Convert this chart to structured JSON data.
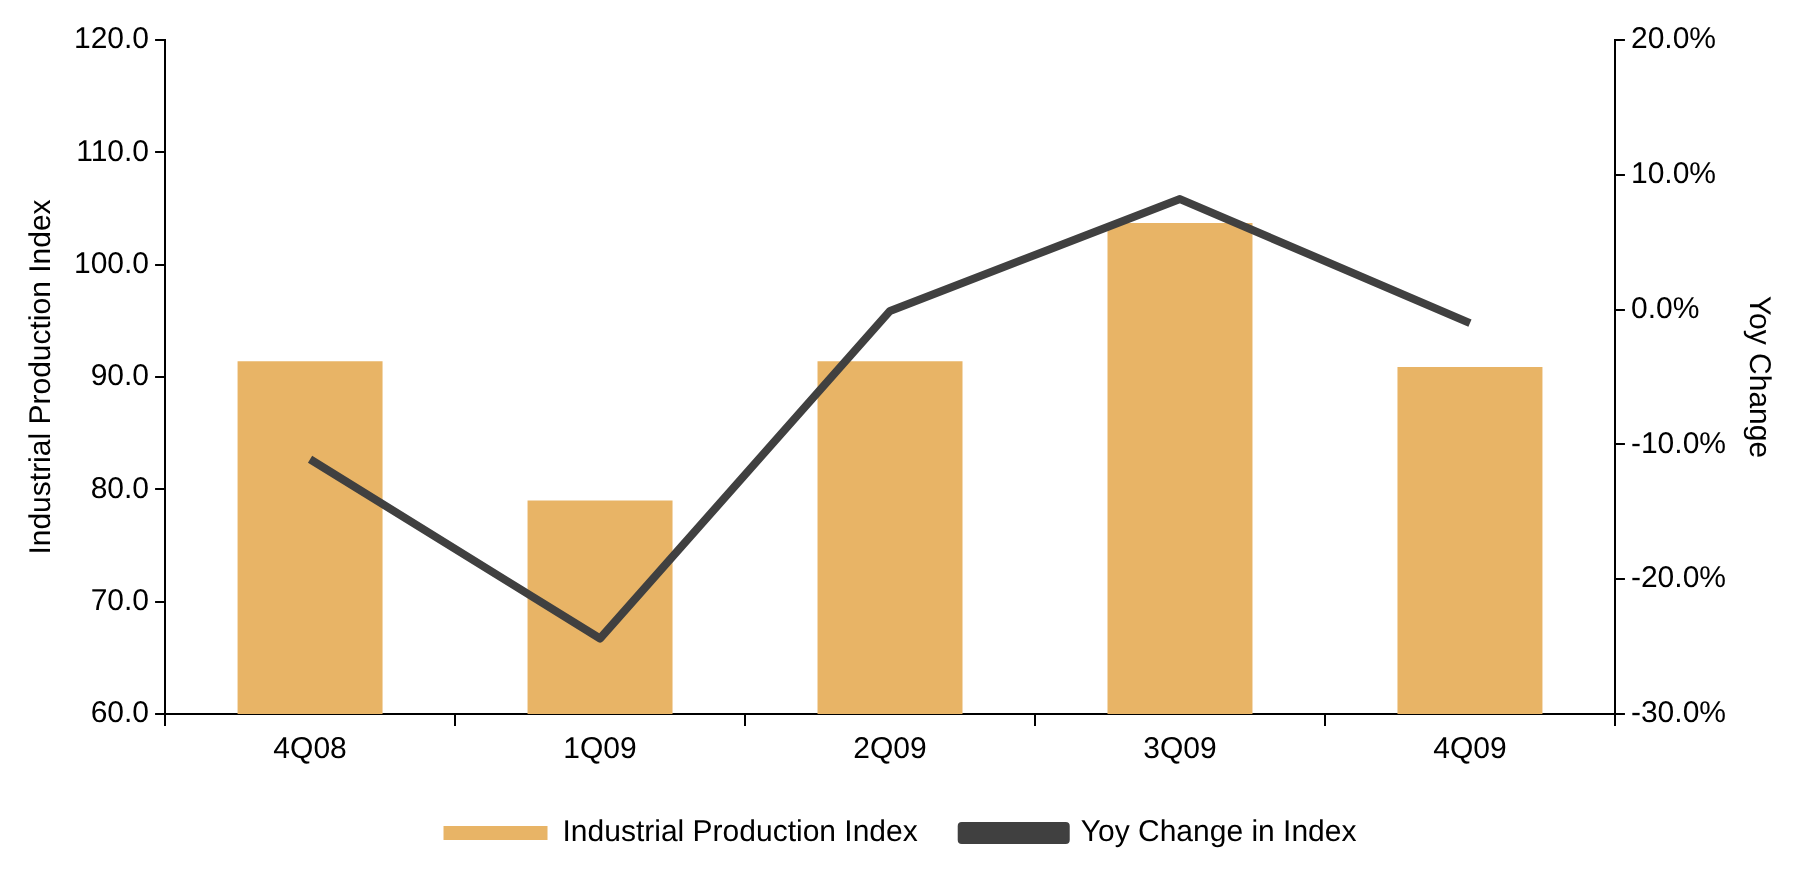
{
  "chart_data": {
    "type": "bar",
    "categories": [
      "4Q08",
      "1Q09",
      "2Q09",
      "3Q09",
      "4Q09"
    ],
    "ylabel": "Industrial Production Index",
    "y2label": "Yoy Change",
    "series": [
      {
        "name": "Industrial Production Index",
        "color": "#e8b466",
        "values": [
          91.4,
          79.0,
          91.4,
          103.7,
          90.9
        ]
      },
      {
        "name": "Yoy Change in Index",
        "type": "line",
        "axis": "y2",
        "color": "#404040",
        "values": [
          -11.1,
          -24.4,
          -0.1,
          8.2,
          -1.0
        ]
      }
    ],
    "ylim": [
      60,
      120
    ],
    "yticks": [
      {
        "value": 60,
        "label": "60.0"
      },
      {
        "value": 70,
        "label": "70.0"
      },
      {
        "value": 80,
        "label": "80.0"
      },
      {
        "value": 90,
        "label": "90.0"
      },
      {
        "value": 100,
        "label": "100.0"
      },
      {
        "value": 110,
        "label": "110.0"
      },
      {
        "value": 120,
        "label": "120.0"
      }
    ],
    "y2lim": [
      -30,
      20
    ],
    "y2ticks": [
      {
        "value": -30,
        "label": "-30.0%"
      },
      {
        "value": -20,
        "label": "-20.0%"
      },
      {
        "value": -10,
        "label": "-10.0%"
      },
      {
        "value": 0,
        "label": "0.0%"
      },
      {
        "value": 10,
        "label": "10.0%"
      },
      {
        "value": 20,
        "label": "20.0%"
      }
    ],
    "grid": false,
    "legend": "bottom",
    "marker": "none",
    "line_style": "solid"
  }
}
